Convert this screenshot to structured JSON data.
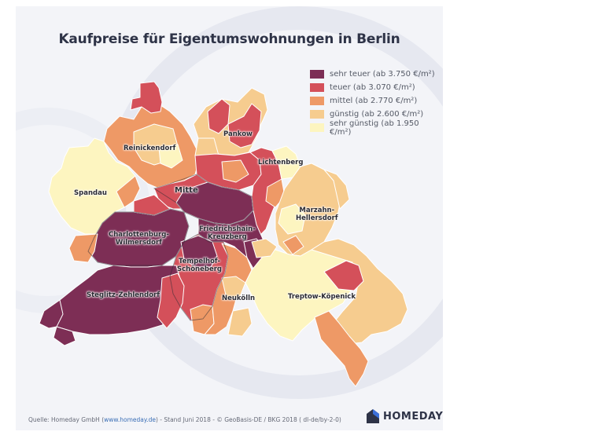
{
  "title": "Kaufpreise für Eigentumswohnungen in Berlin",
  "legend": [
    {
      "label": "sehr teuer  (ab 3.750 €/m²)",
      "color": "#7d2e55"
    },
    {
      "label": "teuer  (ab 3.070 €/m²)",
      "color": "#d4505a"
    },
    {
      "label": "mittel  (ab 2.770 €/m²)",
      "color": "#ee9966"
    },
    {
      "label": "günstig  (ab 2.600 €/m²)",
      "color": "#f6cc8f"
    },
    {
      "label": "sehr günstig  (ab 1.950 €/m²)",
      "color": "#fdf5c0"
    }
  ],
  "districts": {
    "reinickendorf": "Reinickendorf",
    "pankow": "Pankow",
    "lichtenberg": "Lichtenberg",
    "spandau": "Spandau",
    "mitte": "Mitte",
    "marzahn_1": "Marzahn-",
    "marzahn_2": "Hellersdorf",
    "charlottenburg_1": "Charlottenburg-",
    "charlottenburg_2": "Wilmersdorf",
    "friedrichshain_1": "Friedrichshain-",
    "friedrichshain_2": "Kreuzberg",
    "tempelhof_1": "Tempelhof-",
    "tempelhof_2": "Schöneberg",
    "steglitz": "Steglitz-Zehlendorf",
    "neukoelln": "Neukölln",
    "treptow": "Treptow-Köpenick"
  },
  "source": {
    "prefix": "Quelle: Homeday GmbH (",
    "link": "www.homeday.de",
    "suffix": ") - Stand Juni 2018 - © GeoBasis-DE / BKG 2018 ( dl-de/by-2-0)"
  },
  "brand": "HOMEDAY"
}
